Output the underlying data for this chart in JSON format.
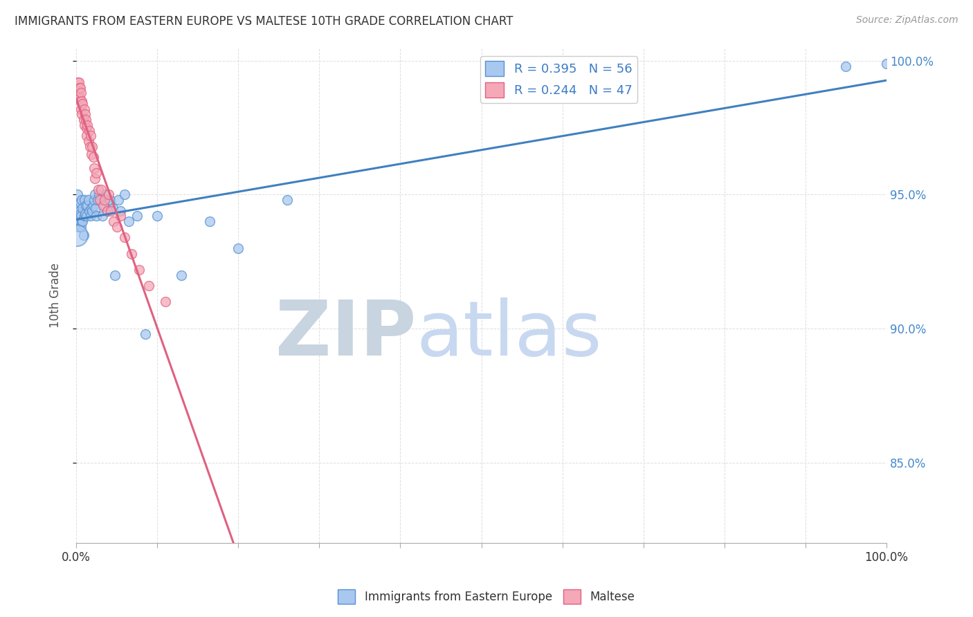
{
  "title": "IMMIGRANTS FROM EASTERN EUROPE VS MALTESE 10TH GRADE CORRELATION CHART",
  "source": "Source: ZipAtlas.com",
  "ylabel": "10th Grade",
  "legend_blue_r": "R = 0.395",
  "legend_blue_n": "N = 56",
  "legend_pink_r": "R = 0.244",
  "legend_pink_n": "N = 47",
  "blue_color": "#A8C8F0",
  "pink_color": "#F4A8B8",
  "blue_edge_color": "#5590D0",
  "pink_edge_color": "#E06080",
  "blue_line_color": "#4080C0",
  "pink_line_color": "#E06080",
  "watermark_zip_color": "#C8D4E0",
  "watermark_atlas_color": "#C8D8F0",
  "blue_x": [
    0.002,
    0.002,
    0.002,
    0.003,
    0.003,
    0.004,
    0.004,
    0.005,
    0.005,
    0.006,
    0.006,
    0.007,
    0.007,
    0.008,
    0.008,
    0.009,
    0.01,
    0.01,
    0.011,
    0.012,
    0.013,
    0.014,
    0.015,
    0.016,
    0.018,
    0.019,
    0.02,
    0.021,
    0.022,
    0.023,
    0.024,
    0.025,
    0.026,
    0.028,
    0.03,
    0.032,
    0.034,
    0.036,
    0.038,
    0.04,
    0.042,
    0.045,
    0.048,
    0.052,
    0.055,
    0.06,
    0.065,
    0.075,
    0.085,
    0.1,
    0.13,
    0.165,
    0.2,
    0.26,
    0.95,
    1.0
  ],
  "blue_y": [
    0.94,
    0.945,
    0.95,
    0.942,
    0.938,
    0.944,
    0.94,
    0.943,
    0.947,
    0.942,
    0.938,
    0.948,
    0.94,
    0.945,
    0.94,
    0.935,
    0.942,
    0.948,
    0.943,
    0.946,
    0.942,
    0.946,
    0.948,
    0.944,
    0.942,
    0.945,
    0.944,
    0.946,
    0.948,
    0.95,
    0.945,
    0.942,
    0.948,
    0.95,
    0.948,
    0.942,
    0.946,
    0.95,
    0.944,
    0.947,
    0.948,
    0.945,
    0.92,
    0.948,
    0.944,
    0.95,
    0.94,
    0.942,
    0.898,
    0.942,
    0.92,
    0.94,
    0.93,
    0.948,
    0.998,
    0.999
  ],
  "pink_x": [
    0.002,
    0.002,
    0.003,
    0.003,
    0.004,
    0.004,
    0.005,
    0.005,
    0.006,
    0.006,
    0.007,
    0.007,
    0.008,
    0.009,
    0.01,
    0.01,
    0.011,
    0.012,
    0.013,
    0.013,
    0.014,
    0.015,
    0.016,
    0.017,
    0.018,
    0.019,
    0.02,
    0.021,
    0.022,
    0.023,
    0.025,
    0.027,
    0.029,
    0.031,
    0.033,
    0.035,
    0.038,
    0.04,
    0.043,
    0.046,
    0.05,
    0.055,
    0.06,
    0.068,
    0.078,
    0.09,
    0.11
  ],
  "pink_y": [
    0.99,
    0.992,
    0.992,
    0.988,
    0.99,
    0.986,
    0.99,
    0.985,
    0.988,
    0.982,
    0.985,
    0.98,
    0.984,
    0.978,
    0.982,
    0.976,
    0.98,
    0.978,
    0.975,
    0.972,
    0.976,
    0.97,
    0.974,
    0.968,
    0.972,
    0.965,
    0.968,
    0.964,
    0.96,
    0.956,
    0.958,
    0.952,
    0.948,
    0.952,
    0.946,
    0.948,
    0.944,
    0.95,
    0.944,
    0.94,
    0.938,
    0.942,
    0.934,
    0.928,
    0.922,
    0.916,
    0.91
  ],
  "xlim": [
    0.0,
    1.0
  ],
  "ylim": [
    0.82,
    1.005
  ],
  "y_ticks": [
    0.85,
    0.9,
    0.95,
    1.0
  ],
  "x_tick_positions": [
    0.0,
    0.1,
    0.2,
    0.3,
    0.4,
    0.5,
    0.6,
    0.7,
    0.8,
    0.9,
    1.0
  ]
}
